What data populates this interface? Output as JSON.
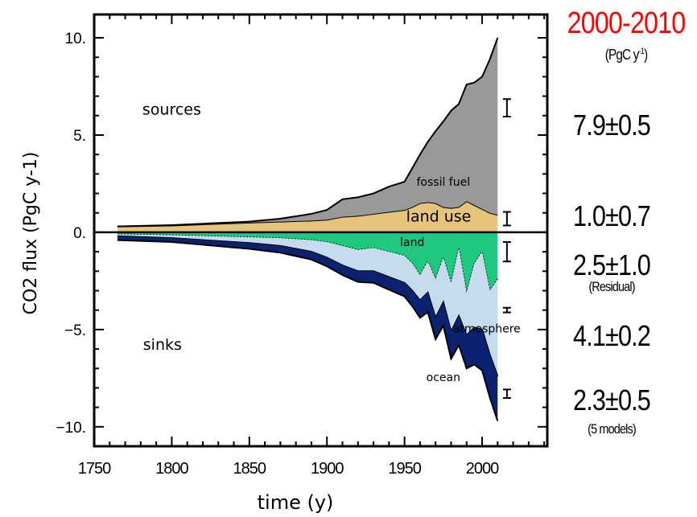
{
  "chart_data": {
    "type": "area",
    "xlabel": "time (y)",
    "ylabel": "CO2 flux (PgC y-1)",
    "xlim": [
      1750,
      2042
    ],
    "ylim": [
      -11.0,
      11.2
    ],
    "xticks": [
      1750,
      1800,
      1850,
      1900,
      1950,
      2000
    ],
    "yticks": [
      {
        "v": 10,
        "label": "10."
      },
      {
        "v": 5,
        "label": "5."
      },
      {
        "v": 0,
        "label": "0."
      },
      {
        "v": -5,
        "label": "−5."
      },
      {
        "v": -10,
        "label": "−10."
      }
    ],
    "x": [
      1765,
      1800,
      1850,
      1870,
      1890,
      1900,
      1910,
      1920,
      1930,
      1940,
      1950,
      1955,
      1960,
      1965,
      1970,
      1975,
      1980,
      1985,
      1990,
      1995,
      2000,
      2005,
      2010
    ],
    "sources": [
      {
        "name": "land use",
        "color": "#e6c47c",
        "values": [
          0.3,
          0.35,
          0.5,
          0.55,
          0.6,
          0.65,
          0.8,
          0.85,
          0.95,
          1.05,
          1.15,
          1.3,
          1.5,
          1.55,
          1.5,
          1.3,
          1.25,
          1.3,
          1.6,
          1.4,
          1.2,
          1.0,
          0.9
        ]
      },
      {
        "name": "fossil fuel",
        "color": "#999999",
        "values": [
          0.0,
          0.02,
          0.05,
          0.15,
          0.35,
          0.5,
          0.9,
          0.95,
          1.05,
          1.3,
          1.45,
          2.0,
          2.5,
          3.1,
          3.7,
          4.4,
          5.0,
          5.3,
          6.0,
          6.3,
          6.8,
          7.9,
          9.1
        ]
      }
    ],
    "sinks": [
      {
        "name": "land",
        "color": "#1fc77f",
        "values": [
          0.1,
          0.15,
          0.25,
          0.3,
          0.4,
          0.5,
          0.7,
          0.9,
          0.8,
          1.0,
          1.2,
          1.6,
          2.2,
          1.5,
          2.4,
          1.3,
          2.6,
          0.8,
          3.1,
          1.6,
          1.0,
          3.0,
          2.4
        ]
      },
      {
        "name": "atmosphere",
        "color": "#c6dcee",
        "values": [
          0.1,
          0.15,
          0.3,
          0.4,
          0.6,
          0.8,
          1.0,
          1.1,
          1.2,
          1.3,
          1.4,
          1.4,
          1.3,
          1.6,
          2.0,
          2.3,
          2.5,
          3.5,
          2.2,
          3.3,
          4.0,
          3.3,
          5.0
        ]
      },
      {
        "name": "ocean",
        "color": "#0b2270",
        "values": [
          0.2,
          0.2,
          0.3,
          0.35,
          0.4,
          0.45,
          0.5,
          0.55,
          0.6,
          0.65,
          0.7,
          0.8,
          0.9,
          1.0,
          1.1,
          1.2,
          1.4,
          1.5,
          1.7,
          1.9,
          2.1,
          2.2,
          2.3
        ]
      }
    ],
    "annotations": [
      {
        "text": "sources",
        "x": 1800,
        "y": 6.3
      },
      {
        "text": "sinks",
        "x": 1794,
        "y": -5.8
      },
      {
        "text": "fossil fuel",
        "x": 1975,
        "y": 2.65
      },
      {
        "text": "land use",
        "x": 1972,
        "y": 0.8
      },
      {
        "text": "land",
        "x": 1955,
        "y": -0.45
      },
      {
        "text": "atmosphere",
        "x": 2003,
        "y": -4.9
      },
      {
        "text": "ocean",
        "x": 1975,
        "y": -7.4
      }
    ],
    "error_bars": [
      {
        "name": "fossil fuel",
        "x": 2016,
        "center": 6.4,
        "half": 0.45
      },
      {
        "name": "land use",
        "x": 2016,
        "center": 0.7,
        "half": 0.35
      },
      {
        "name": "land",
        "x": 2016,
        "center": -1.0,
        "half": 0.5
      },
      {
        "name": "atmosphere",
        "x": 2016,
        "center": -4.0,
        "half": 0.12
      },
      {
        "name": "ocean",
        "x": 2016,
        "center": -8.3,
        "half": 0.22
      }
    ]
  },
  "panel": {
    "title": "2000-2010",
    "unit": "(PgC y",
    "unit_sup": "-1",
    "unit_close": ")",
    "values": [
      {
        "value": "7.9±0.5",
        "note": ""
      },
      {
        "value": "1.0±0.7",
        "note": ""
      },
      {
        "value": "2.5±1.0",
        "note": "(Residual)"
      },
      {
        "value": "4.1±0.2",
        "note": ""
      },
      {
        "value": "2.3±0.5",
        "note": "(5 models)"
      }
    ],
    "title_color": "#ff0000"
  }
}
